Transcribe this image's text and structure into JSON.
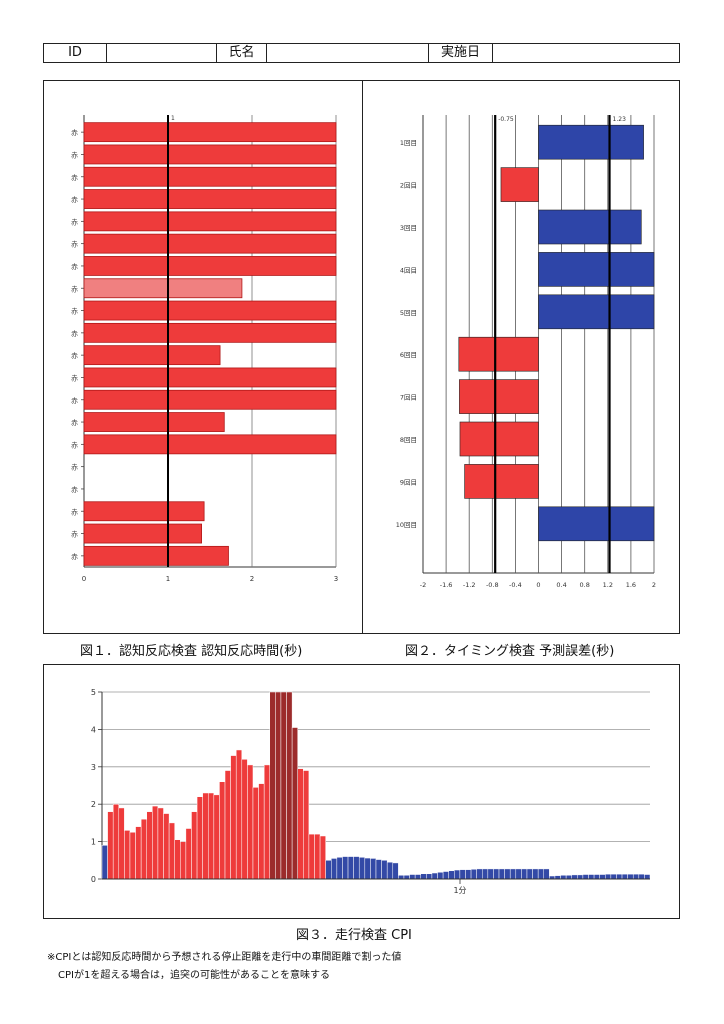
{
  "header": {
    "id_label": "ID",
    "name_label": "氏名",
    "date_label": "実施日"
  },
  "captions": {
    "fig1": "図１．認知反応検査 認知反応時間(秒)",
    "fig2": "図２．タイミング検査 予測誤差(秒)",
    "fig3": "図３．走行検査 CPI"
  },
  "notes": {
    "line1": "※CPIとは認知反応時間から予想される停止距離を走行中の車間距離で割った値",
    "line2": "CPIが1を超える場合は，追突の可能性があることを意味する"
  },
  "chart_data": [
    {
      "type": "bar",
      "orientation": "horizontal",
      "categories": [
        "赤",
        "赤",
        "赤",
        "赤",
        "赤",
        "赤",
        "赤",
        "赤",
        "赤",
        "赤",
        "赤",
        "赤",
        "赤",
        "赤",
        "赤",
        "赤",
        "赤",
        "赤",
        "赤",
        "赤"
      ],
      "values": [
        3,
        3,
        3,
        3,
        3,
        3,
        3,
        1.88,
        3,
        3,
        1.62,
        3,
        3,
        1.67,
        3,
        null,
        null,
        1.43,
        1.4,
        1.72
      ],
      "highlight_index": 7,
      "xlim": [
        0,
        3
      ],
      "xticks": [
        "0",
        "1",
        "2",
        "3"
      ],
      "reference_line": {
        "value": 1,
        "label": "1"
      },
      "colors": {
        "bar": "#ee3b3b",
        "highlight": "#f08080",
        "bar_edge": "#b01818"
      }
    },
    {
      "type": "bar",
      "orientation": "horizontal",
      "categories": [
        "1回目",
        "2回目",
        "3回目",
        "4回目",
        "5回目",
        "6回目",
        "7回目",
        "8回目",
        "9回目",
        "10回目"
      ],
      "values": [
        1.82,
        -0.65,
        1.78,
        2,
        2,
        -1.38,
        -1.37,
        -1.36,
        -1.28,
        2
      ],
      "xlim": [
        -2,
        2
      ],
      "xticks": [
        "-2",
        "-1.6",
        "-1.2",
        "-0.8",
        "-0.4",
        "0",
        "0.4",
        "0.8",
        "1.2",
        "1.6",
        "2"
      ],
      "reference_lines": [
        {
          "value": -0.75,
          "label": "-0.75"
        },
        {
          "value": 1.23,
          "label": "1.23"
        }
      ],
      "colors": {
        "positive": "#2e45a8",
        "negative": "#ee3b3b"
      }
    },
    {
      "type": "bar",
      "ylim": [
        0,
        5
      ],
      "yticks": [
        "0",
        "1",
        "2",
        "3",
        "4",
        "5"
      ],
      "x_annotation": "1分",
      "values": [
        0.9,
        1.8,
        2.0,
        1.9,
        1.3,
        1.25,
        1.4,
        1.6,
        1.8,
        1.95,
        1.9,
        1.75,
        1.5,
        1.05,
        1.0,
        1.35,
        1.8,
        2.2,
        2.3,
        2.3,
        2.25,
        2.6,
        2.9,
        3.3,
        3.45,
        3.2,
        3.05,
        2.45,
        2.55,
        3.05,
        5,
        5,
        5,
        5,
        4.05,
        2.95,
        2.9,
        1.2,
        1.2,
        1.15,
        0.5,
        0.55,
        0.58,
        0.6,
        0.6,
        0.6,
        0.58,
        0.56,
        0.55,
        0.52,
        0.5,
        0.45,
        0.43,
        0.1,
        0.1,
        0.12,
        0.12,
        0.14,
        0.14,
        0.16,
        0.18,
        0.2,
        0.22,
        0.24,
        0.25,
        0.25,
        0.26,
        0.27,
        0.27,
        0.27,
        0.27,
        0.27,
        0.27,
        0.27,
        0.27,
        0.27,
        0.27,
        0.27,
        0.27,
        0.27,
        0.08,
        0.09,
        0.1,
        0.1,
        0.11,
        0.11,
        0.12,
        0.12,
        0.12,
        0.12,
        0.13,
        0.13,
        0.13,
        0.13,
        0.13,
        0.13,
        0.13,
        0.12
      ],
      "colors": {
        "above": "#ee3b3b",
        "below": "#3349a6",
        "peak": "#9c2b2b"
      }
    }
  ]
}
